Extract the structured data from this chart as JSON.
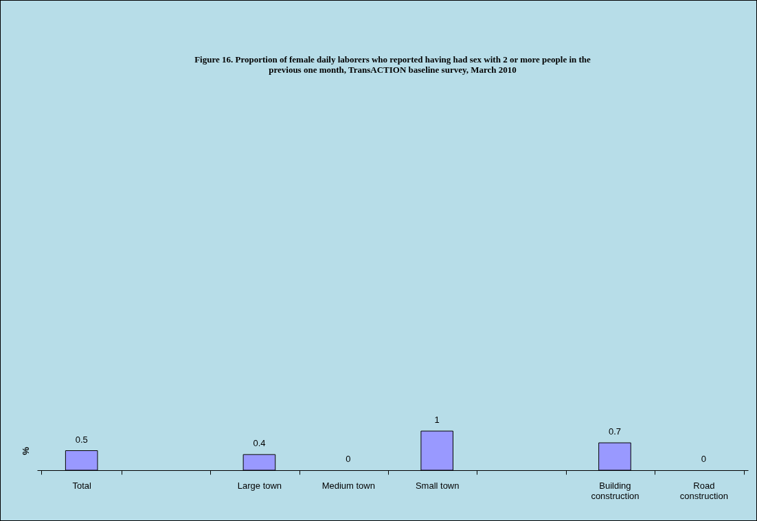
{
  "chart_data": {
    "type": "bar",
    "title": [
      "Figure 16. Proportion of female daily laborers who reported having had sex with 2 or more people in the",
      "previous one month, TransACTION baseline survey, March 2010"
    ],
    "ylabel": "%",
    "categories": [
      "Total",
      null,
      "Large town",
      "Medium town",
      "Small town",
      null,
      "Building construction",
      "Road construction"
    ],
    "values": [
      0.5,
      null,
      0.4,
      0,
      1,
      null,
      0.7,
      0
    ],
    "color": "#9999ff",
    "tick_labels": "x",
    "data_labels": true
  }
}
